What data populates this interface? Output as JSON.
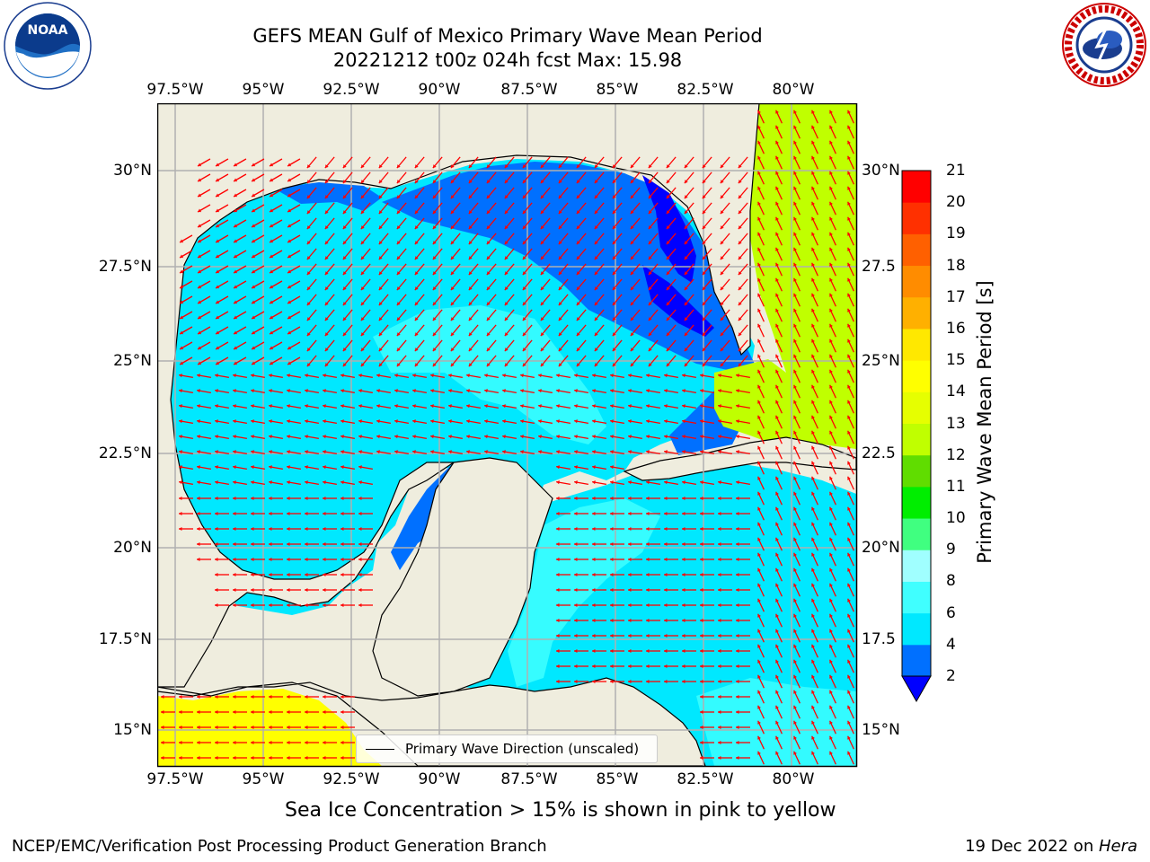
{
  "titles": {
    "line1": "GEFS MEAN Gulf of Mexico Primary Wave Mean Period",
    "line2": "20221212 t00z 024h fcst   Max: 15.98"
  },
  "logos": {
    "left": {
      "name": "NOAA",
      "ring_text": "NATIONAL OCEANIC AND ATMOSPHERIC ADMINISTRATION · U.S. DEPARTMENT OF COMMERCE"
    },
    "right": {
      "name": "NATIONAL WEATHER SERVICE"
    }
  },
  "map": {
    "lon_ticks_top": [
      "97.5°W",
      "95°W",
      "92.5°W",
      "90°W",
      "87.5°W",
      "85°W",
      "82.5°W",
      "80°W"
    ],
    "lon_ticks_bottom": [
      "97.5°W",
      "95°W",
      "92.5°W",
      "90°W",
      "87.5°W",
      "85°W",
      "82.5°W",
      "80°W"
    ],
    "lat_ticks_left": [
      "30°N",
      "27.5°N",
      "25°N",
      "22.5°N",
      "20°N",
      "17.5°N",
      "15°N"
    ],
    "lat_ticks_right": [
      "30°N",
      "27.5",
      "25°N",
      "22.5",
      "20°N",
      "17.5",
      "15°N"
    ],
    "land_color": "#efedde",
    "arrow_color": "#ff0000",
    "coast_color": "#000000",
    "grid": true
  },
  "legend": {
    "label": "Primary Wave Direction (unscaled)"
  },
  "colorbar": {
    "label": "Primary Wave Mean Period [s]",
    "ticks": [
      "2",
      "4",
      "6",
      "8",
      "9",
      "10",
      "11",
      "12",
      "13",
      "14",
      "15",
      "16",
      "17",
      "18",
      "19",
      "20",
      "21"
    ],
    "colors": [
      "#0070ff",
      "#00e8ff",
      "#40ffff",
      "#a0ffff",
      "#40ff80",
      "#00ee00",
      "#60dd00",
      "#c0ff00",
      "#e6ff00",
      "#ffff00",
      "#ffe800",
      "#ffb000",
      "#ff8c00",
      "#ff6000",
      "#ff3000",
      "#ff0000"
    ],
    "extend_color": "#0000ff"
  },
  "caption": "Sea Ice Concentration > 15% is shown in pink to yellow",
  "footer": {
    "left": "NCEP/EMC/Verification Post Processing Product Generation Branch",
    "right_date": "19 Dec 2022 on ",
    "right_host": "Hera"
  }
}
